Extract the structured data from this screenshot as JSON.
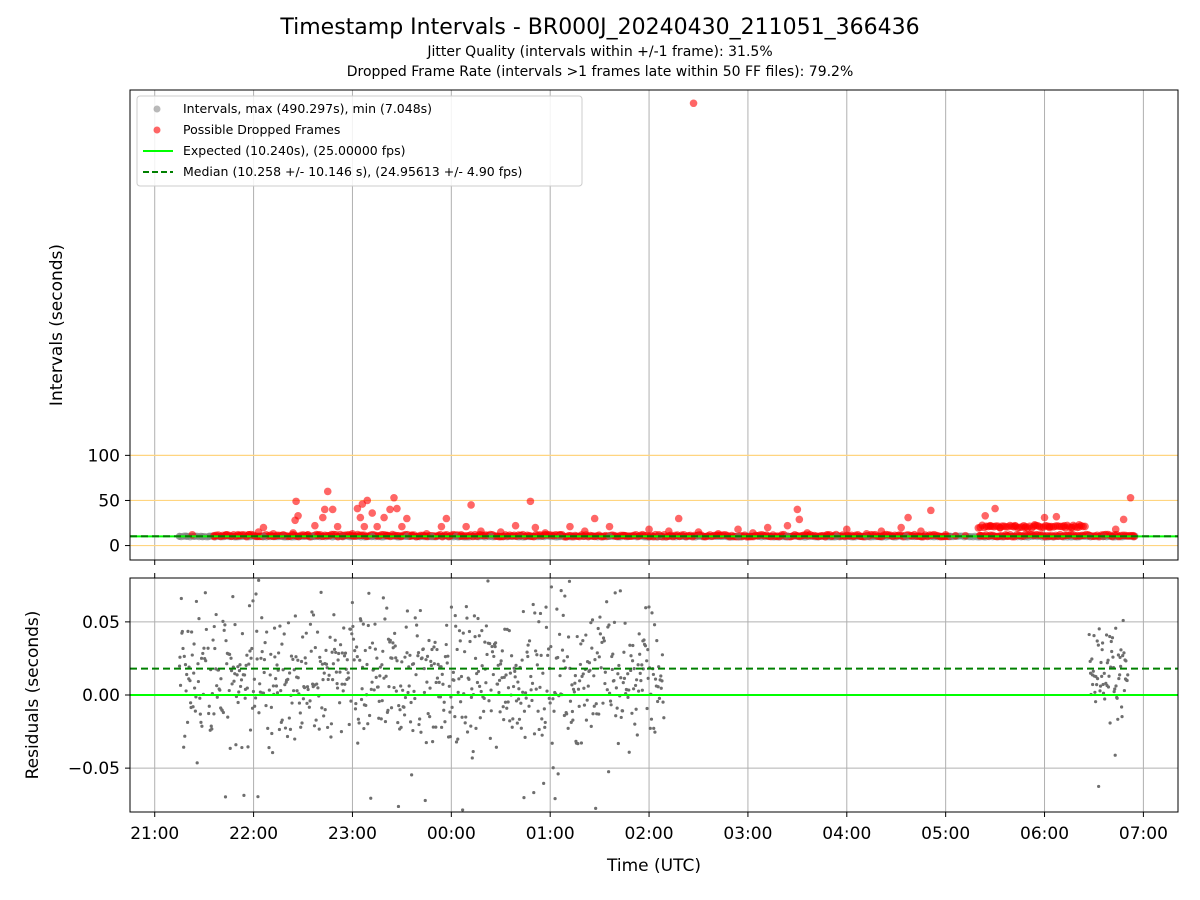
{
  "title": "Timestamp Intervals - BR000J_20240430_211051_366436",
  "subtitle_1": "Jitter Quality (intervals within +/-1 frame): 31.5%",
  "subtitle_2": "Dropped Frame Rate (intervals >1 frames late within 50 FF files): 79.2%",
  "colors": {
    "intervals": "#808080",
    "dropped": "#ff0000",
    "expected": "#00ff00",
    "median": "#008000",
    "threshold": "#ffd580",
    "grid": "#b0b0b0"
  },
  "chart_data": [
    {
      "type": "scatter",
      "ylabel": "Intervals (seconds)",
      "xlabel": "",
      "x_ticks": [
        "21:00",
        "22:00",
        "23:00",
        "00:00",
        "01:00",
        "02:00",
        "03:00",
        "04:00",
        "05:00",
        "06:00",
        "07:00"
      ],
      "xlim_hours": [
        20.75,
        31.35
      ],
      "x_unit": "hours (UTC, values past 24 are the next day)",
      "y_ticks": [
        "0",
        "50",
        "100"
      ],
      "ylim": [
        -16,
        505
      ],
      "threshold_lines": [
        0,
        50,
        100
      ],
      "grid": "vertical",
      "legend_position": "top-left",
      "legend": [
        {
          "label": "Intervals, max (490.297s), min (7.048s)",
          "kind": "marker",
          "color": "#808080"
        },
        {
          "label": "Possible Dropped Frames",
          "kind": "marker",
          "color": "#ff0000"
        },
        {
          "label": "Expected (10.240s), (25.00000 fps)",
          "kind": "solid",
          "color": "#00ff00"
        },
        {
          "label": "Median (10.258 +/- 10.146 s), (24.95613 +/- 4.90 fps)",
          "kind": "dashed",
          "color": "#008000"
        }
      ],
      "expected_value": 10.24,
      "median_value": 10.258,
      "series": [
        {
          "name": "Intervals, max (490.297s), min (7.048s)",
          "points": [
            [
              21.25,
              10.2
            ],
            [
              21.32,
              10.3
            ],
            [
              21.4,
              10.2
            ],
            [
              21.48,
              10.1
            ],
            [
              21.55,
              10.3
            ],
            [
              22.1,
              10.2
            ],
            [
              22.3,
              10.3
            ],
            [
              22.6,
              10.2
            ],
            [
              22.9,
              10.3
            ],
            [
              23.2,
              10.2
            ],
            [
              23.55,
              10.3
            ],
            [
              23.8,
              10.2
            ],
            [
              24.05,
              10.3
            ],
            [
              24.4,
              10.2
            ],
            [
              24.7,
              10.3
            ],
            [
              25.1,
              10.2
            ],
            [
              25.6,
              10.3
            ],
            [
              26.1,
              10.2
            ],
            [
              26.5,
              10.3
            ],
            [
              26.9,
              10.2
            ],
            [
              27.4,
              10.3
            ],
            [
              27.9,
              10.2
            ],
            [
              28.2,
              10.3
            ],
            [
              28.6,
              10.2
            ],
            [
              29.05,
              10.3
            ],
            [
              29.1,
              10.2
            ],
            [
              30.45,
              10.3
            ],
            [
              30.6,
              10.2
            ]
          ]
        },
        {
          "name": "Possible Dropped Frames",
          "points": [
            [
              21.38,
              12
            ],
            [
              21.6,
              11
            ],
            [
              21.72,
              12
            ],
            [
              21.85,
              11
            ],
            [
              21.95,
              12
            ],
            [
              22.05,
              15
            ],
            [
              22.1,
              20
            ],
            [
              22.2,
              13
            ],
            [
              22.3,
              12
            ],
            [
              22.4,
              14
            ],
            [
              22.42,
              28
            ],
            [
              22.43,
              49
            ],
            [
              22.45,
              33
            ],
            [
              22.55,
              12
            ],
            [
              22.62,
              22
            ],
            [
              22.65,
              11
            ],
            [
              22.7,
              31
            ],
            [
              22.72,
              40
            ],
            [
              22.75,
              60
            ],
            [
              22.8,
              40
            ],
            [
              22.85,
              21
            ],
            [
              22.9,
              11
            ],
            [
              23.0,
              13
            ],
            [
              23.05,
              41
            ],
            [
              23.08,
              31
            ],
            [
              23.1,
              46
            ],
            [
              23.12,
              21
            ],
            [
              23.15,
              50
            ],
            [
              23.2,
              36
            ],
            [
              23.25,
              21
            ],
            [
              23.32,
              31
            ],
            [
              23.35,
              11
            ],
            [
              23.38,
              40
            ],
            [
              23.42,
              53
            ],
            [
              23.45,
              41
            ],
            [
              23.5,
              21
            ],
            [
              23.55,
              30
            ],
            [
              23.6,
              11
            ],
            [
              23.75,
              13
            ],
            [
              23.9,
              21
            ],
            [
              23.95,
              30
            ],
            [
              24.1,
              12
            ],
            [
              24.15,
              21
            ],
            [
              24.2,
              45
            ],
            [
              24.3,
              16
            ],
            [
              24.5,
              15
            ],
            [
              24.65,
              22
            ],
            [
              24.7,
              11
            ],
            [
              24.8,
              49
            ],
            [
              24.85,
              20
            ],
            [
              24.95,
              14
            ],
            [
              25.1,
              12
            ],
            [
              25.2,
              21
            ],
            [
              25.35,
              16
            ],
            [
              25.45,
              30
            ],
            [
              25.6,
              21
            ],
            [
              25.75,
              11
            ],
            [
              26.0,
              18
            ],
            [
              26.1,
              12
            ],
            [
              26.2,
              16
            ],
            [
              26.3,
              30
            ],
            [
              26.5,
              15
            ],
            [
              26.7,
              13
            ],
            [
              26.9,
              18
            ],
            [
              27.05,
              14
            ],
            [
              27.2,
              20
            ],
            [
              27.4,
              22
            ],
            [
              27.5,
              40
            ],
            [
              27.52,
              29
            ],
            [
              27.6,
              14
            ],
            [
              27.8,
              12
            ],
            [
              28.0,
              18
            ],
            [
              28.2,
              13
            ],
            [
              28.35,
              16
            ],
            [
              28.55,
              20
            ],
            [
              28.62,
              31
            ],
            [
              28.75,
              16
            ],
            [
              28.85,
              39
            ],
            [
              29.0,
              12
            ],
            [
              29.1,
              11
            ],
            [
              29.2,
              11
            ],
            [
              29.35,
              11
            ],
            [
              29.4,
              33
            ],
            [
              29.45,
              22
            ],
            [
              29.5,
              41
            ],
            [
              29.55,
              20
            ],
            [
              29.62,
              11
            ],
            [
              29.7,
              22
            ],
            [
              29.8,
              20
            ],
            [
              29.9,
              23
            ],
            [
              30.0,
              31
            ],
            [
              30.05,
              20
            ],
            [
              30.12,
              32
            ],
            [
              30.2,
              22
            ],
            [
              30.28,
              20
            ],
            [
              30.35,
              23
            ],
            [
              30.45,
              11
            ],
            [
              30.6,
              12
            ],
            [
              30.72,
              18
            ],
            [
              30.8,
              29
            ],
            [
              30.87,
              53
            ],
            [
              30.9,
              11
            ],
            [
              26.45,
              490.3
            ]
          ]
        }
      ]
    },
    {
      "type": "scatter",
      "ylabel": "Residuals (seconds)",
      "xlabel": "Time (UTC)",
      "x_ticks": [
        "21:00",
        "22:00",
        "23:00",
        "00:00",
        "01:00",
        "02:00",
        "03:00",
        "04:00",
        "05:00",
        "06:00",
        "07:00"
      ],
      "xlim_hours": [
        20.75,
        31.35
      ],
      "y_ticks": [
        "−0.05",
        "0.00",
        "0.05"
      ],
      "ylim": [
        -0.08,
        0.08
      ],
      "grid": "both",
      "expected_residual": 0,
      "median_residual": 0.018,
      "residual_clusters": [
        {
          "x_range": [
            21.25,
            26.15
          ],
          "center": 0.0,
          "spread": 0.06
        },
        {
          "x_range": [
            30.45,
            30.85
          ],
          "center": 0.005,
          "spread": 0.04
        }
      ]
    }
  ]
}
